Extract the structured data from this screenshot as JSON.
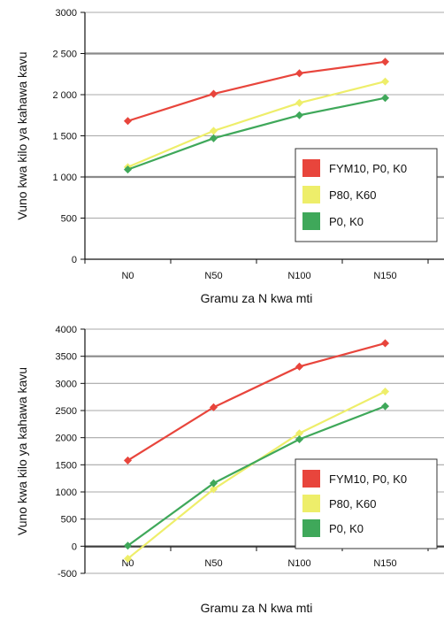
{
  "chart_data": [
    {
      "type": "line",
      "categories": [
        "N0",
        "N50",
        "N100",
        "N150"
      ],
      "xlabel": "Gramu za N kwa mti",
      "ylabel": "Vuno kwa kilo ya kahawa kavu",
      "ylim": [
        0,
        3000
      ],
      "yticks": [
        0,
        500,
        1000,
        1500,
        2000,
        2500,
        3000
      ],
      "ytick_labels": [
        "0",
        "500",
        "1 000",
        "1 500",
        "2 000",
        "2 500",
        "3000"
      ],
      "grid": "horizontal",
      "legend_position": "lower-right",
      "series": [
        {
          "name": "FYM10, P0, K0",
          "color": "#e8453c",
          "values": [
            1680,
            2010,
            2260,
            2400
          ]
        },
        {
          "name": "P80, K60",
          "color": "#eeee6a",
          "values": [
            1120,
            1560,
            1900,
            2160
          ]
        },
        {
          "name": "P0, K0",
          "color": "#3fa85a",
          "values": [
            1090,
            1470,
            1750,
            1960
          ]
        }
      ]
    },
    {
      "type": "line",
      "categories": [
        "N0",
        "N50",
        "N100",
        "N150"
      ],
      "xlabel": "Gramu za N kwa mti",
      "ylabel": "Vuno kwa kilo ya kahawa kavu",
      "ylim": [
        -500,
        4000
      ],
      "yticks": [
        -500,
        0,
        500,
        1000,
        1500,
        2000,
        2500,
        3000,
        3500,
        4000
      ],
      "ytick_labels": [
        "-500",
        "0",
        "500",
        "1000",
        "1500",
        "2000",
        "2500",
        "3000",
        "3500",
        "4000"
      ],
      "grid": "horizontal",
      "legend_position": "lower-right",
      "series": [
        {
          "name": "FYM10, P0, K0",
          "color": "#e8453c",
          "values": [
            1580,
            2560,
            3310,
            3740
          ]
        },
        {
          "name": "P80, K60",
          "color": "#eeee6a",
          "values": [
            -230,
            1050,
            2080,
            2850
          ]
        },
        {
          "name": "P0, K0",
          "color": "#3fa85a",
          "values": [
            10,
            1160,
            1970,
            2580
          ]
        }
      ]
    }
  ]
}
